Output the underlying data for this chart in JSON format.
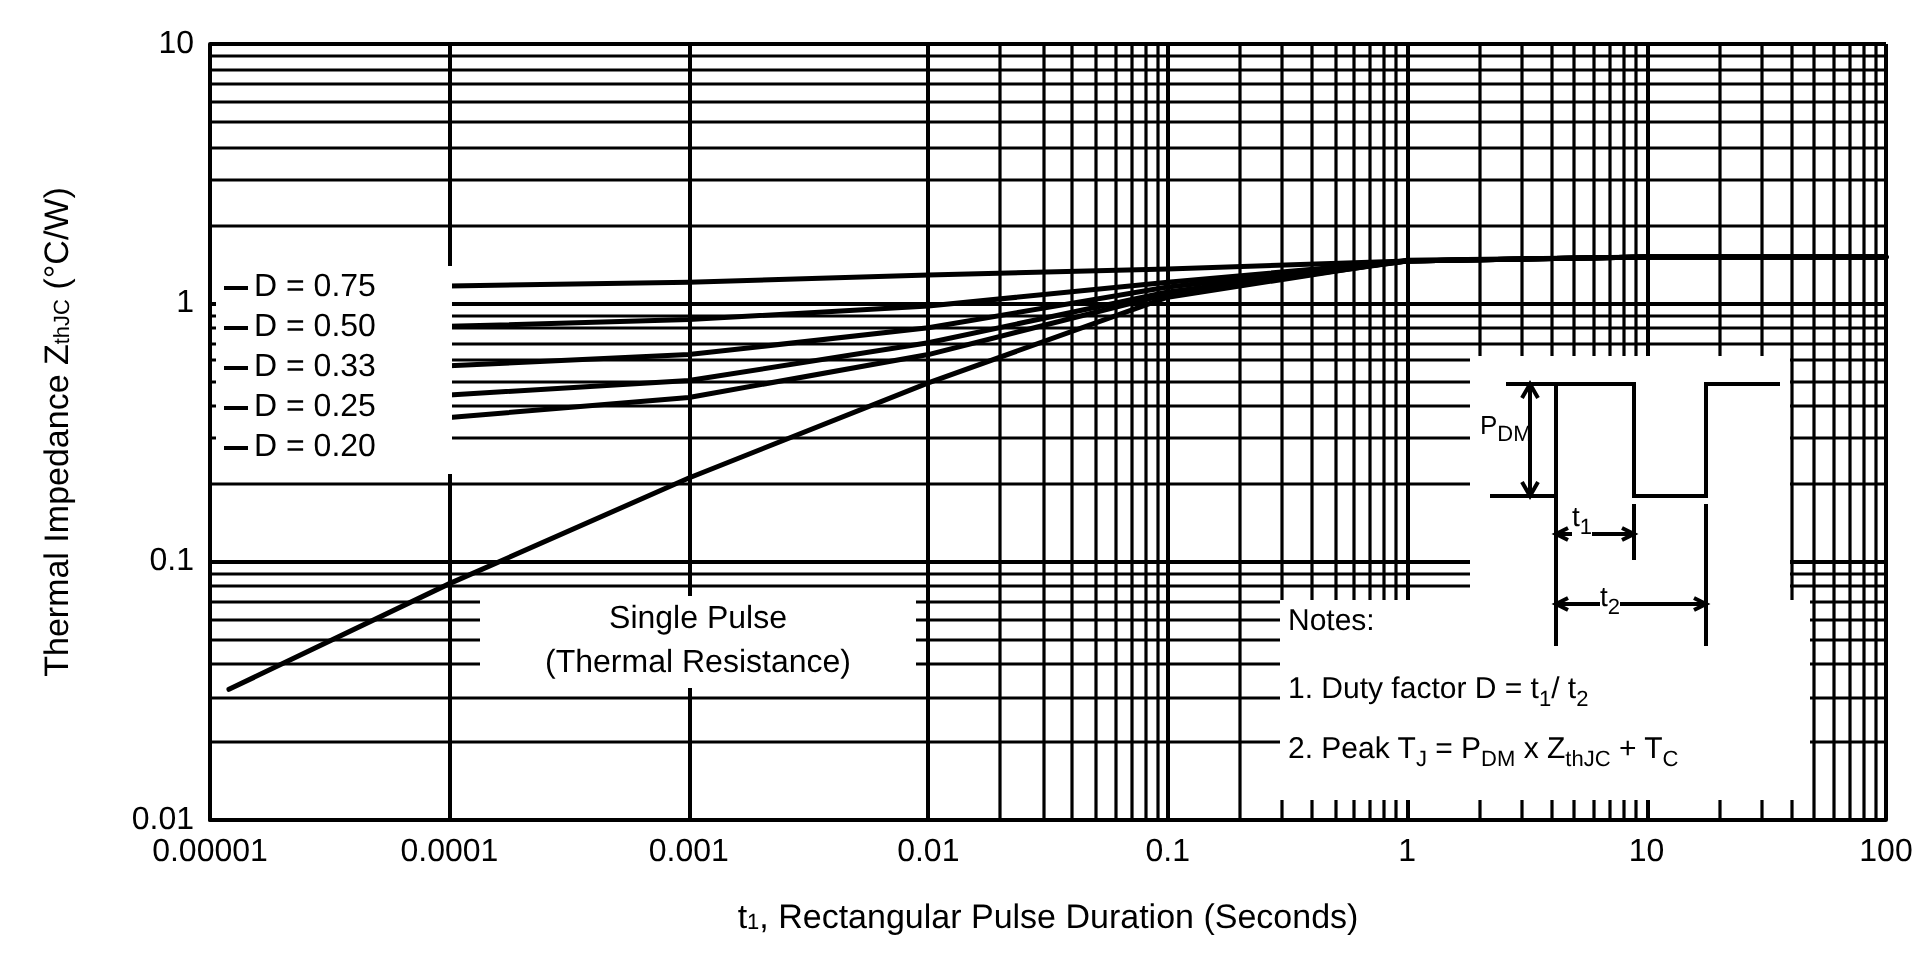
{
  "chart_data": {
    "type": "line",
    "xlabel": "t$_{1}$, Rectangular Pulse Duration (Seconds)",
    "ylabel": "Thermal Impedance Z$_{thJC}$ (°C/W)",
    "log": "xy",
    "xlim": [
      1e-05,
      100
    ],
    "ylim": [
      0.01,
      10
    ],
    "xticks": [
      {
        "value": 1e-05,
        "label": "0.00001"
      },
      {
        "value": 0.0001,
        "label": "0.0001"
      },
      {
        "value": 0.001,
        "label": "0.001"
      },
      {
        "value": 0.01,
        "label": "0.01"
      },
      {
        "value": 0.1,
        "label": "0.1"
      },
      {
        "value": 1,
        "label": "1"
      },
      {
        "value": 10,
        "label": "10"
      },
      {
        "value": 100,
        "label": "100"
      }
    ],
    "yticks": [
      {
        "value": 0.01,
        "label": "0.01"
      },
      {
        "value": 0.1,
        "label": "0.1"
      },
      {
        "value": 1,
        "label": "1"
      },
      {
        "value": 10,
        "label": "10"
      }
    ],
    "grid": true,
    "legend": "left",
    "marker": "none",
    "line_style": "solid",
    "series": [
      {
        "name": "D = 0.75",
        "color": "#000000",
        "x": [
          0.0001,
          0.001,
          0.01,
          0.1,
          1,
          10,
          100
        ],
        "values": [
          1.16,
          1.2,
          1.28,
          1.35,
          1.45,
          1.5,
          1.5
        ]
      },
      {
        "name": "D = 0.50",
        "color": "#000000",
        "x": [
          0.0001,
          0.001,
          0.01,
          0.1,
          1,
          10,
          100
        ],
        "values": [
          0.81,
          0.86,
          0.97,
          1.2,
          1.45,
          1.5,
          1.5
        ]
      },
      {
        "name": "D = 0.33",
        "color": "#000000",
        "x": [
          0.0001,
          0.001,
          0.01,
          0.1,
          1,
          10,
          100
        ],
        "values": [
          0.57,
          0.63,
          0.8,
          1.15,
          1.45,
          1.5,
          1.5
        ]
      },
      {
        "name": "D = 0.25",
        "color": "#000000",
        "x": [
          0.0001,
          0.001,
          0.01,
          0.1,
          1,
          10,
          100
        ],
        "values": [
          0.44,
          0.5,
          0.7,
          1.1,
          1.45,
          1.5,
          1.5
        ]
      },
      {
        "name": "D = 0.20",
        "color": "#000000",
        "x": [
          0.0001,
          0.001,
          0.01,
          0.1,
          1,
          10,
          100
        ],
        "values": [
          0.36,
          0.43,
          0.63,
          1.08,
          1.45,
          1.5,
          1.5
        ]
      },
      {
        "name": "Single Pulse (Thermal Resistance)",
        "color": "#000000",
        "x": [
          1.2e-05,
          0.0001,
          0.001,
          0.01,
          0.1,
          1,
          10,
          100
        ],
        "values": [
          0.032,
          0.082,
          0.21,
          0.49,
          1.05,
          1.46,
          1.5,
          1.5
        ]
      }
    ],
    "annotations": [
      "Notes:",
      "1. Duty factor D = t$_{1}$/ t$_{2}$",
      "2. Peak T$_{J}$ = P$_{DM}$ x Z$_{thJC}$ + T$_{C}$",
      "P$_{DM}$",
      "t$_{1}$",
      "t$_{2}$"
    ]
  }
}
